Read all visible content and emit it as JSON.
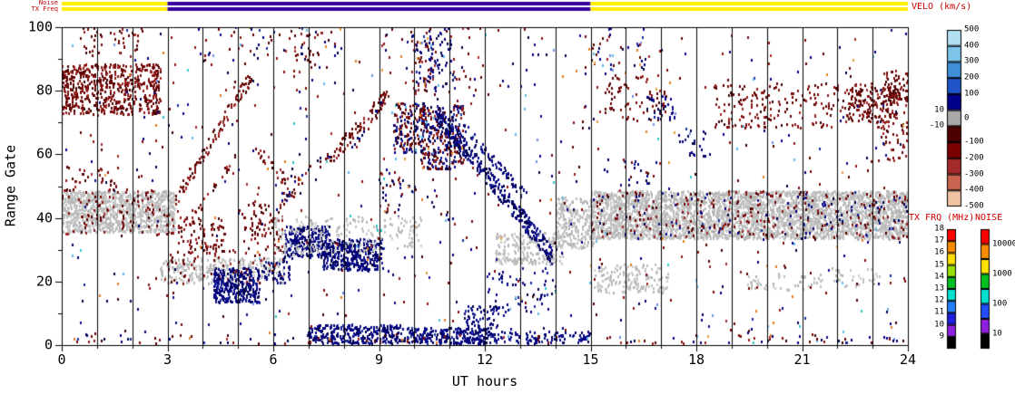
{
  "chart_data": {
    "type": "heatmap",
    "title": "",
    "xlabel": "UT hours",
    "ylabel": "Range Gate",
    "xlim": [
      0,
      24
    ],
    "ylim": [
      0,
      100
    ],
    "x_major_ticks": [
      0,
      3,
      6,
      9,
      12,
      15,
      18,
      21,
      24
    ],
    "x_minor_step": 1,
    "y_major_ticks": [
      0,
      20,
      40,
      60,
      80,
      100
    ],
    "y_minor_step": 10,
    "grid": "vertical-hourly-black-lines",
    "top_bars": {
      "noise_label": "Noise",
      "txfreq_label": "TX Freq",
      "noise_segments": [
        {
          "t0": 0,
          "t1": 3,
          "color": "#FFEE00"
        },
        {
          "t0": 3,
          "t1": 15,
          "color": "#330099"
        },
        {
          "t0": 15,
          "t1": 24,
          "color": "#FFEE00"
        }
      ],
      "txfreq_segments": [
        {
          "t0": 0,
          "t1": 3,
          "color": "#FFEE00"
        },
        {
          "t0": 3,
          "t1": 15,
          "color": "#330099"
        },
        {
          "t0": 15,
          "t1": 24,
          "color": "#FFEE00"
        }
      ]
    },
    "colorbars": {
      "velocity": {
        "title": "VELO (km/s)",
        "boundaries": [
          500,
          400,
          300,
          200,
          100,
          10,
          -10,
          -100,
          -200,
          -300,
          -400,
          -500
        ],
        "colors": [
          "#B2E0F2",
          "#7EC4E8",
          "#3F8FD6",
          "#1F55C8",
          "#00008B",
          "#A8A8A8",
          "#4C0000",
          "#7A0000",
          "#A52A2A",
          "#C86450",
          "#EFC3A4"
        ],
        "right_labels": [
          {
            "text": "500",
            "b": 0
          },
          {
            "text": "400",
            "b": 1
          },
          {
            "text": "300",
            "b": 2
          },
          {
            "text": "200",
            "b": 3
          },
          {
            "text": "100",
            "b": 4
          },
          {
            "text": "0",
            "b": 5.5
          },
          {
            "text": "-100",
            "b": 7
          },
          {
            "text": "-200",
            "b": 8
          },
          {
            "text": "-300",
            "b": 9
          },
          {
            "text": "-400",
            "b": 10
          },
          {
            "text": "-500",
            "b": 11
          }
        ],
        "left_labels": [
          {
            "text": "10",
            "b": 5
          },
          {
            "text": "-10",
            "b": 6
          }
        ]
      },
      "tx_freq": {
        "title": "TX FRQ (MHz)",
        "labels": [
          {
            "text": "18",
            "b": 0
          },
          {
            "text": "17",
            "b": 1
          },
          {
            "text": "16",
            "b": 2
          },
          {
            "text": "15",
            "b": 3
          },
          {
            "text": "14",
            "b": 4
          },
          {
            "text": "13",
            "b": 5
          },
          {
            "text": "12",
            "b": 6
          },
          {
            "text": "11",
            "b": 7
          },
          {
            "text": "10",
            "b": 8
          },
          {
            "text": "9",
            "b": 9
          }
        ],
        "colors": [
          "#FF0000",
          "#FF8C00",
          "#FFE000",
          "#96E000",
          "#00C020",
          "#00E0D0",
          "#2080FF",
          "#2020E0",
          "#9020E0",
          "#000000"
        ]
      },
      "noise": {
        "title": "NOISE",
        "labels": [
          {
            "text": "10000",
            "b": 1
          },
          {
            "text": "1000",
            "b": 3
          },
          {
            "text": "100",
            "b": 5
          },
          {
            "text": "10",
            "b": 7
          }
        ],
        "colors": [
          "#FF0000",
          "#FF8C00",
          "#FFE000",
          "#00C020",
          "#00E0D0",
          "#2050FF",
          "#9020E0",
          "#000000"
        ]
      }
    },
    "palettes": {
      "neg": [
        [
          "#5C0000",
          3
        ],
        [
          "#7A0A0A",
          3
        ],
        [
          "#8B1A1A",
          2
        ],
        [
          "#A52A2A",
          1
        ],
        [
          "#3E0000",
          1
        ]
      ],
      "pos": [
        [
          "#00004B",
          2
        ],
        [
          "#000080",
          4
        ],
        [
          "#10108B",
          2
        ],
        [
          "#1C2E9E",
          1
        ],
        [
          "#000060",
          1
        ]
      ],
      "gray": [
        [
          "#C0C0C0",
          5
        ],
        [
          "#B4B4B4",
          3
        ],
        [
          "#CCCCCC",
          2
        ]
      ],
      "bright": [
        [
          "#E08020",
          2
        ],
        [
          "#62B8E8",
          2
        ],
        [
          "#30C8C8",
          1
        ],
        [
          "#E8A040",
          1
        ],
        [
          "#7090E8",
          1
        ]
      ]
    },
    "features": [
      {
        "kind": "band",
        "t": [
          0,
          2.8
        ],
        "g": [
          72,
          88
        ],
        "density": 0.6,
        "palette": "neg"
      },
      {
        "kind": "band",
        "t": [
          0.6,
          2.3
        ],
        "g": [
          90,
          100
        ],
        "density": 0.12,
        "palette": "neg"
      },
      {
        "kind": "band",
        "t": [
          0,
          3.2
        ],
        "g": [
          35,
          48
        ],
        "density": 1.2,
        "palette": "gray"
      },
      {
        "kind": "band",
        "t": [
          0,
          3.2
        ],
        "g": [
          34,
          49
        ],
        "density": 0.1,
        "palette": "neg"
      },
      {
        "kind": "band",
        "t": [
          0,
          1.6
        ],
        "g": [
          48,
          56
        ],
        "density": 0.12,
        "palette": "neg"
      },
      {
        "kind": "band",
        "t": [
          2.8,
          6.3
        ],
        "g": [
          19,
          27
        ],
        "density": 0.5,
        "palette": "gray"
      },
      {
        "kind": "band",
        "t": [
          2.9,
          6.3
        ],
        "g": [
          19,
          30
        ],
        "density": 0.08,
        "palette": "neg"
      },
      {
        "kind": "band",
        "t": [
          4.3,
          5.6
        ],
        "g": [
          13,
          24
        ],
        "density": 1.0,
        "palette": "pos"
      },
      {
        "kind": "band",
        "t": [
          5.7,
          6.5
        ],
        "g": [
          19,
          26
        ],
        "density": 0.35,
        "palette": "pos"
      },
      {
        "kind": "band",
        "t": [
          5.1,
          6.3
        ],
        "g": [
          30,
          45
        ],
        "density": 0.2,
        "palette": "neg"
      },
      {
        "kind": "band",
        "t": [
          6.3,
          7.6
        ],
        "g": [
          27,
          37
        ],
        "density": 1.0,
        "palette": "pos"
      },
      {
        "kind": "band",
        "t": [
          7.4,
          9.1
        ],
        "g": [
          23,
          33
        ],
        "density": 0.9,
        "palette": "pos"
      },
      {
        "kind": "band",
        "t": [
          6.0,
          9.2
        ],
        "g": [
          28,
          40
        ],
        "density": 0.2,
        "palette": "gray"
      },
      {
        "kind": "band",
        "t": [
          7.0,
          9.6
        ],
        "g": [
          0,
          6
        ],
        "density": 0.8,
        "palette": "pos"
      },
      {
        "kind": "band",
        "t": [
          9.6,
          12.2
        ],
        "g": [
          0,
          5
        ],
        "density": 0.9,
        "palette": "pos"
      },
      {
        "kind": "band",
        "t": [
          12.2,
          15.0
        ],
        "g": [
          0,
          4
        ],
        "density": 0.4,
        "palette": "pos"
      },
      {
        "kind": "band",
        "t": [
          11.4,
          12.4
        ],
        "g": [
          4,
          12
        ],
        "density": 0.35,
        "palette": "pos"
      },
      {
        "kind": "band",
        "t": [
          9.4,
          10.3
        ],
        "g": [
          60,
          76
        ],
        "density": 0.55,
        "palette": "mix"
      },
      {
        "kind": "band",
        "t": [
          10.2,
          11.4
        ],
        "g": [
          55,
          75
        ],
        "density": 0.6,
        "palette": "mix"
      },
      {
        "kind": "band",
        "t": [
          12.3,
          14.2
        ],
        "g": [
          25,
          35
        ],
        "density": 0.55,
        "palette": "gray"
      },
      {
        "kind": "band",
        "t": [
          14.0,
          15.1
        ],
        "g": [
          30,
          46
        ],
        "density": 0.7,
        "palette": "gray"
      },
      {
        "kind": "band",
        "t": [
          12.0,
          14.0
        ],
        "g": [
          10,
          24
        ],
        "density": 0.1,
        "palette": "pos"
      },
      {
        "kind": "band",
        "t": [
          15.0,
          24
        ],
        "g": [
          33,
          48
        ],
        "density": 1.3,
        "palette": "gray"
      },
      {
        "kind": "band",
        "t": [
          15.0,
          24
        ],
        "g": [
          33,
          48
        ],
        "density": 0.08,
        "palette": "neg"
      },
      {
        "kind": "band",
        "t": [
          15.0,
          24
        ],
        "g": [
          33,
          48
        ],
        "density": 0.03,
        "palette": "pos"
      },
      {
        "kind": "band",
        "t": [
          15.1,
          17.2
        ],
        "g": [
          16,
          25
        ],
        "density": 0.4,
        "palette": "gray"
      },
      {
        "kind": "band",
        "t": [
          19.4,
          21.6
        ],
        "g": [
          17,
          22
        ],
        "density": 0.22,
        "palette": "gray"
      },
      {
        "kind": "band",
        "t": [
          21.8,
          23.2
        ],
        "g": [
          18,
          24
        ],
        "density": 0.18,
        "palette": "gray"
      },
      {
        "kind": "band",
        "t": [
          15.4,
          17.2
        ],
        "g": [
          70,
          85
        ],
        "density": 0.12,
        "palette": "neg"
      },
      {
        "kind": "band",
        "t": [
          18.5,
          24.0
        ],
        "g": [
          68,
          82
        ],
        "density": 0.14,
        "palette": "neg"
      },
      {
        "kind": "band",
        "t": [
          22.3,
          23.7
        ],
        "g": [
          70,
          80
        ],
        "density": 0.45,
        "palette": "neg"
      },
      {
        "kind": "band",
        "t": [
          23.3,
          24.0
        ],
        "g": [
          75,
          86
        ],
        "density": 0.4,
        "palette": "neg"
      },
      {
        "kind": "band",
        "t": [
          15.0,
          16.6
        ],
        "g": [
          85,
          100
        ],
        "density": 0.08,
        "palette": "mix"
      },
      {
        "kind": "band",
        "t": [
          9.0,
          12.0
        ],
        "g": [
          80,
          100
        ],
        "density": 0.05,
        "palette": "mix"
      },
      {
        "kind": "band",
        "t": [
          4.0,
          8.0
        ],
        "g": [
          85,
          100
        ],
        "density": 0.04,
        "palette": "mix"
      },
      {
        "kind": "band",
        "t": [
          16.6,
          17.4
        ],
        "g": [
          70,
          78
        ],
        "density": 0.25,
        "palette": "pos"
      },
      {
        "kind": "band",
        "t": [
          17.5,
          18.3
        ],
        "g": [
          58,
          68
        ],
        "density": 0.12,
        "palette": "pos"
      },
      {
        "kind": "band",
        "t": [
          3.3,
          4.6
        ],
        "g": [
          28,
          40
        ],
        "density": 0.25,
        "palette": "neg"
      },
      {
        "kind": "band",
        "t": [
          9.0,
          9.6
        ],
        "g": [
          40,
          55
        ],
        "density": 0.15,
        "palette": "mix"
      },
      {
        "kind": "band",
        "t": [
          9.9,
          10.6
        ],
        "g": [
          78,
          96
        ],
        "density": 0.18,
        "palette": "mix"
      },
      {
        "kind": "band",
        "t": [
          10.4,
          11.1
        ],
        "g": [
          84,
          100
        ],
        "density": 0.15,
        "palette": "pos"
      },
      {
        "kind": "band",
        "t": [
          23.2,
          24.0
        ],
        "g": [
          58,
          70
        ],
        "density": 0.2,
        "palette": "neg"
      },
      {
        "kind": "band",
        "t": [
          9.3,
          10.2
        ],
        "g": [
          30,
          40
        ],
        "density": 0.25,
        "palette": "gray"
      },
      {
        "kind": "band",
        "t": [
          15.8,
          17.0
        ],
        "g": [
          50,
          58
        ],
        "density": 0.1,
        "palette": "mix"
      },
      {
        "kind": "band",
        "t": [
          6.6,
          7.4
        ],
        "g": [
          88,
          98
        ],
        "density": 0.12,
        "palette": "neg"
      },
      {
        "kind": "band",
        "t": [
          0,
          24
        ],
        "g": [
          0,
          3
        ],
        "density": 0.08,
        "palette": "mix"
      },
      {
        "kind": "band",
        "t": [
          0,
          24
        ],
        "g": [
          0,
          100
        ],
        "density": 0.012,
        "palette": "mix"
      },
      {
        "kind": "band",
        "t": [
          0,
          24
        ],
        "g": [
          0,
          100
        ],
        "density": 0.002,
        "palette": "bright"
      },
      {
        "kind": "diag",
        "t": [
          3.2,
          5.4
        ],
        "g": [
          45,
          85
        ],
        "width": 5,
        "density": 0.45,
        "palette": "neg"
      },
      {
        "kind": "diag",
        "t": [
          3.6,
          5.0
        ],
        "g": [
          38,
          60
        ],
        "width": 3,
        "density": 0.25,
        "palette": "neg"
      },
      {
        "kind": "diag",
        "t": [
          5.5,
          6.6
        ],
        "g": [
          62,
          48
        ],
        "width": 4,
        "density": 0.3,
        "palette": "neg"
      },
      {
        "kind": "diag",
        "t": [
          6.2,
          7.6
        ],
        "g": [
          45,
          60
        ],
        "width": 4,
        "density": 0.3,
        "palette": "mix"
      },
      {
        "kind": "diag",
        "t": [
          7.6,
          9.2
        ],
        "g": [
          58,
          78
        ],
        "width": 5,
        "density": 0.4,
        "palette": "neg"
      },
      {
        "kind": "diag",
        "t": [
          8.3,
          9.3
        ],
        "g": [
          62,
          79
        ],
        "width": 3,
        "density": 0.3,
        "palette": "mix"
      },
      {
        "kind": "diag",
        "t": [
          10.6,
          13.9
        ],
        "g": [
          73,
          28
        ],
        "width": 6,
        "density": 0.8,
        "palette": "pos"
      },
      {
        "kind": "diag",
        "t": [
          11.4,
          13.2
        ],
        "g": [
          68,
          46
        ],
        "width": 3.5,
        "density": 0.5,
        "palette": "pos"
      },
      {
        "kind": "diag",
        "t": [
          9.8,
          11.0
        ],
        "g": [
          50,
          40
        ],
        "width": 3,
        "density": 0.15,
        "palette": "mix"
      }
    ]
  }
}
